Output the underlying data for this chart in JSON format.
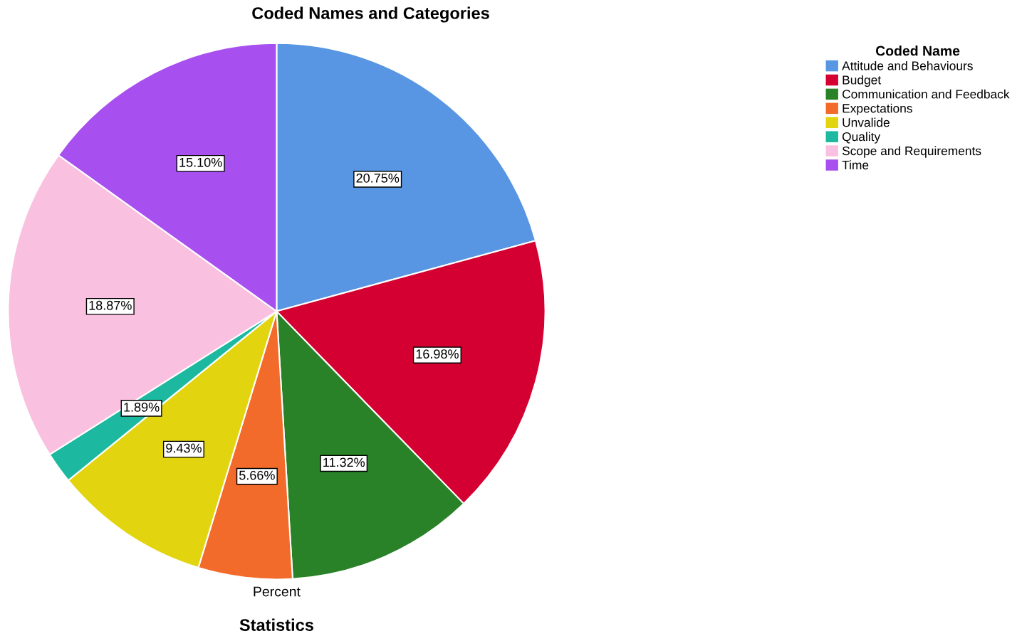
{
  "chart_data": {
    "type": "pie",
    "title": "Coded Names and Categories",
    "xlabel": "Percent",
    "legend_title": "Coded Name",
    "legend": "top right",
    "categories": [
      "Attitude and Behaviours",
      "Budget",
      "Communication and Feedback",
      "Expectations",
      "Unvalide",
      "Quality",
      "Scope and Requirements",
      "Time"
    ],
    "values": [
      20.75,
      16.98,
      11.32,
      5.66,
      9.43,
      1.89,
      18.87,
      15.1
    ],
    "value_labels": [
      "20.75%",
      "16.98%",
      "11.32%",
      "5.66%",
      "9.43%",
      "1.89%",
      "18.87%",
      "15.10%"
    ],
    "colors": [
      "#5896e3",
      "#d50032",
      "#2a8228",
      "#f26b2b",
      "#e2d510",
      "#1cb9a0",
      "#fac0e0",
      "#a84ff0"
    ],
    "annotations": [
      "Statistics"
    ]
  }
}
